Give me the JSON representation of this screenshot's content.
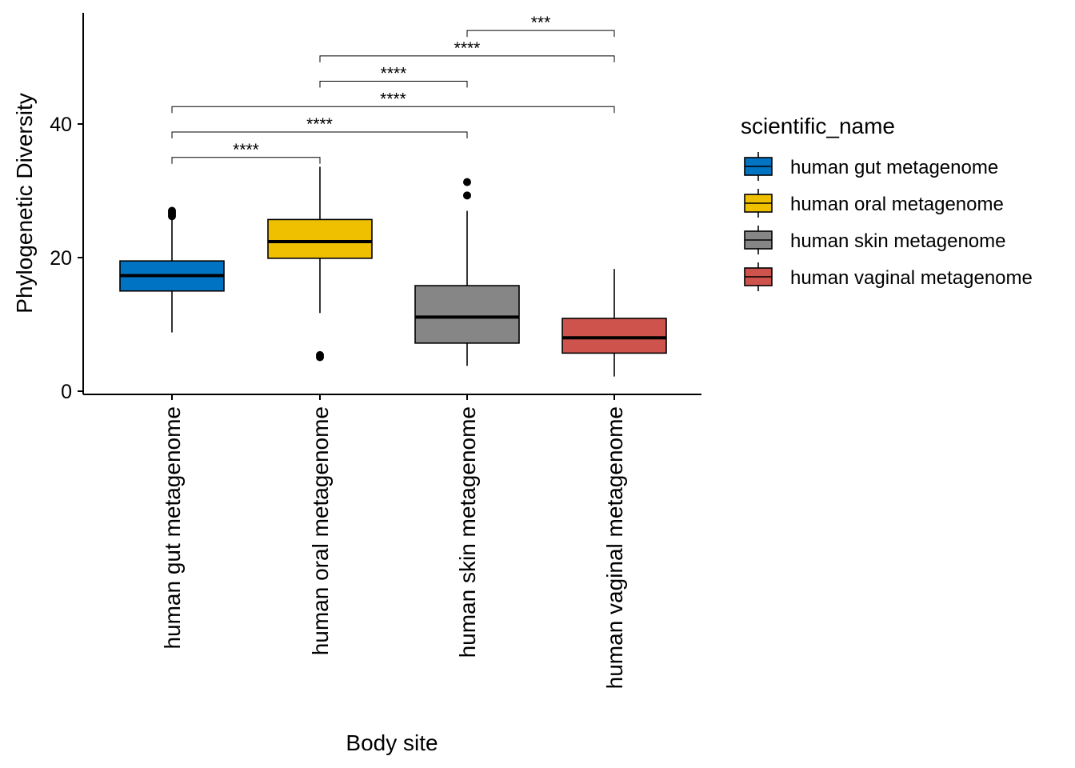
{
  "chart_data": {
    "type": "boxplot",
    "xlabel": "Body site",
    "ylabel": "Phylogenetic Diversity",
    "ylim": [
      0,
      57
    ],
    "yticks": [
      0,
      20,
      40
    ],
    "grid": false,
    "legend": {
      "title": "scientific_name",
      "position": "right"
    },
    "categories": [
      "human gut metagenome",
      "human oral metagenome",
      "human skin metagenome",
      "human vaginal metagenome"
    ],
    "series": [
      {
        "name": "human gut metagenome",
        "color": "#0073C2",
        "whisker_low": 8.8,
        "q1": 15.0,
        "median": 17.3,
        "q3": 19.5,
        "whisker_high": 25.8,
        "outliers": [
          26.2,
          26.5,
          26.8,
          27.0
        ]
      },
      {
        "name": "human oral metagenome",
        "color": "#EFC000",
        "whisker_low": 11.7,
        "q1": 19.9,
        "median": 22.4,
        "q3": 25.7,
        "whisker_high": 33.6,
        "outliers": [
          5.1,
          5.4
        ]
      },
      {
        "name": "human skin metagenome",
        "color": "#868686",
        "whisker_low": 3.8,
        "q1": 7.2,
        "median": 11.1,
        "q3": 15.8,
        "whisker_high": 27.0,
        "outliers": [
          29.3,
          31.3
        ]
      },
      {
        "name": "human vaginal metagenome",
        "color": "#CD534C",
        "whisker_low": 2.2,
        "q1": 5.7,
        "median": 8.0,
        "q3": 10.9,
        "whisker_high": 18.3,
        "outliers": []
      }
    ],
    "comparisons": [
      {
        "group1": "human gut metagenome",
        "group2": "human oral metagenome",
        "y": 35.0,
        "label": "****"
      },
      {
        "group1": "human gut metagenome",
        "group2": "human skin metagenome",
        "y": 38.8,
        "label": "****"
      },
      {
        "group1": "human gut metagenome",
        "group2": "human vaginal metagenome",
        "y": 42.6,
        "label": "****"
      },
      {
        "group1": "human oral metagenome",
        "group2": "human skin metagenome",
        "y": 46.4,
        "label": "****"
      },
      {
        "group1": "human oral metagenome",
        "group2": "human vaginal metagenome",
        "y": 50.2,
        "label": "****"
      },
      {
        "group1": "human skin metagenome",
        "group2": "human vaginal metagenome",
        "y": 54.0,
        "label": "***"
      }
    ]
  }
}
